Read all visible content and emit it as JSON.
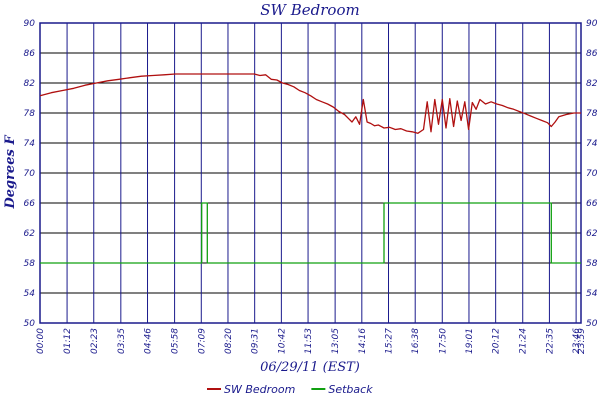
{
  "chart_data": {
    "type": "line",
    "title": "SW Bedroom",
    "xlabel": "06/29/11 (EST)",
    "ylabel": "Degrees F",
    "ylim": [
      50,
      90
    ],
    "y_ticks": [
      "90",
      "86",
      "82",
      "78",
      "74",
      "70",
      "66",
      "62",
      "58",
      "54",
      "50"
    ],
    "x_ticks": [
      "00:00",
      "01:12",
      "02:23",
      "03:35",
      "04:46",
      "05:58",
      "07:09",
      "08:20",
      "09:31",
      "10:42",
      "11:53",
      "13:05",
      "14:16",
      "15:27",
      "16:38",
      "17:50",
      "19:01",
      "20:12",
      "21:24",
      "22:35",
      "23:46",
      "23:59"
    ],
    "grid": true,
    "legend_position": "bottom",
    "series": [
      {
        "name": "SW Bedroom",
        "color": "#b01010",
        "x": [
          "00:00",
          "00:30",
          "01:00",
          "01:30",
          "02:00",
          "02:30",
          "03:00",
          "03:30",
          "04:00",
          "04:30",
          "05:00",
          "05:30",
          "06:00",
          "07:00",
          "08:00",
          "09:00",
          "09:30",
          "09:45",
          "10:00",
          "10:15",
          "10:30",
          "10:45",
          "11:00",
          "11:15",
          "11:30",
          "11:45",
          "12:00",
          "12:15",
          "12:30",
          "12:45",
          "13:00",
          "13:15",
          "13:30",
          "13:40",
          "13:50",
          "14:00",
          "14:10",
          "14:20",
          "14:30",
          "14:40",
          "14:50",
          "15:00",
          "15:15",
          "15:30",
          "15:45",
          "16:00",
          "16:15",
          "16:30",
          "16:45",
          "17:00",
          "17:10",
          "17:20",
          "17:30",
          "17:40",
          "17:50",
          "18:00",
          "18:10",
          "18:20",
          "18:30",
          "18:40",
          "18:50",
          "19:00",
          "19:10",
          "19:20",
          "19:30",
          "19:45",
          "20:00",
          "20:15",
          "20:30",
          "20:45",
          "21:00",
          "21:15",
          "21:30",
          "21:45",
          "22:00",
          "22:15",
          "22:30",
          "22:40",
          "22:50",
          "23:00",
          "23:20",
          "23:40",
          "23:59"
        ],
        "values": [
          80.3,
          80.7,
          81.0,
          81.3,
          81.7,
          82.0,
          82.3,
          82.5,
          82.7,
          82.9,
          83.0,
          83.1,
          83.2,
          83.2,
          83.2,
          83.2,
          83.2,
          83.0,
          83.1,
          82.5,
          82.4,
          82.0,
          81.8,
          81.5,
          81.0,
          80.7,
          80.3,
          79.8,
          79.5,
          79.2,
          78.8,
          78.2,
          77.8,
          77.3,
          76.8,
          77.5,
          76.5,
          79.8,
          76.8,
          76.6,
          76.3,
          76.4,
          76.0,
          76.1,
          75.8,
          75.9,
          75.6,
          75.5,
          75.3,
          75.8,
          79.5,
          75.5,
          79.8,
          76.5,
          79.8,
          76.0,
          79.9,
          76.2,
          79.6,
          77.0,
          79.5,
          75.8,
          79.4,
          78.5,
          79.8,
          79.2,
          79.5,
          79.2,
          79.0,
          78.7,
          78.5,
          78.2,
          77.9,
          77.6,
          77.3,
          77.0,
          76.7,
          76.2,
          76.8,
          77.5,
          77.8,
          78.0,
          78.0
        ]
      },
      {
        "name": "Setback",
        "color": "#11a011",
        "x": [
          "00:00",
          "07:10",
          "07:10",
          "07:25",
          "07:25",
          "15:15",
          "15:15",
          "22:40",
          "22:40",
          "23:59"
        ],
        "values": [
          58,
          58,
          66,
          66,
          58,
          58,
          66,
          66,
          58,
          58
        ]
      }
    ]
  }
}
